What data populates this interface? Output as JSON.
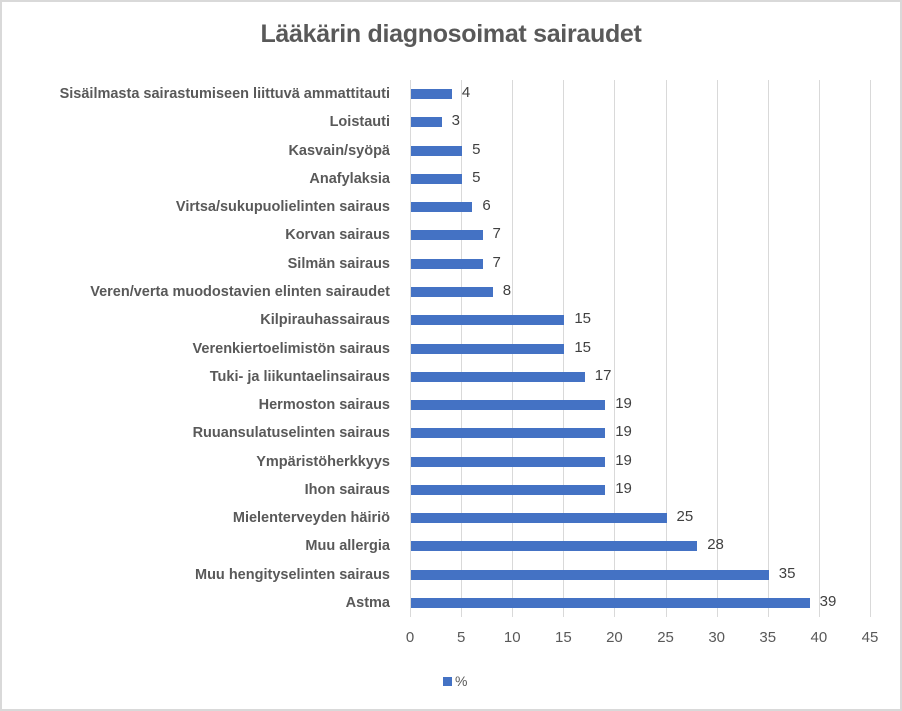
{
  "chart_data": {
    "type": "bar",
    "orientation": "horizontal",
    "title": "Lääkärin diagnosoimat sairaudet",
    "xlabel": "",
    "ylabel": "",
    "xlim": [
      0,
      45
    ],
    "x_ticks": [
      "0",
      "5",
      "10",
      "15",
      "20",
      "25",
      "30",
      "35",
      "40",
      "45"
    ],
    "grid": "vertical",
    "legend_position": "bottom",
    "categories": [
      "Sisäilmasta sairastumiseen liittuvä ammattitauti",
      "Loistauti",
      "Kasvain/syöpä",
      "Anafylaksia",
      "Virtsa/sukupuolielinten sairaus",
      "Korvan sairaus",
      "Silmän sairaus",
      "Veren/verta muodostavien elinten sairaudet",
      "Kilpirauhassairaus",
      "Verenkiertoelimistön sairaus",
      "Tuki- ja liikuntaelinsairaus",
      "Hermoston sairaus",
      "Ruuansulatuselinten sairaus",
      "Ympäristöherkkyys",
      "Ihon sairaus",
      "Mielenterveyden häiriö",
      "Muu allergia",
      "Muu hengityselinten sairaus",
      "Astma"
    ],
    "series": [
      {
        "name": "%",
        "color": "#4472c4",
        "values": [
          4,
          3,
          5,
          5,
          6,
          7,
          7,
          8,
          15,
          15,
          17,
          19,
          19,
          19,
          19,
          25,
          28,
          35,
          39
        ]
      }
    ]
  },
  "title": "Lääkärin diagnosoimat sairaudet",
  "rows": [
    {
      "label": "Sisäilmasta sairastumiseen liittuvä ammattitauti",
      "value": "4"
    },
    {
      "label": "Loistauti",
      "value": "3"
    },
    {
      "label": "Kasvain/syöpä",
      "value": "5"
    },
    {
      "label": "Anafylaksia",
      "value": "5"
    },
    {
      "label": "Virtsa/sukupuolielinten sairaus",
      "value": "6"
    },
    {
      "label": "Korvan sairaus",
      "value": "7"
    },
    {
      "label": "Silmän sairaus",
      "value": "7"
    },
    {
      "label": "Veren/verta muodostavien elinten sairaudet",
      "value": "8"
    },
    {
      "label": "Kilpirauhassairaus",
      "value": "15"
    },
    {
      "label": "Verenkiertoelimistön sairaus",
      "value": "15"
    },
    {
      "label": "Tuki- ja liikuntaelinsairaus",
      "value": "17"
    },
    {
      "label": "Hermoston sairaus",
      "value": "19"
    },
    {
      "label": "Ruuansulatuselinten sairaus",
      "value": "19"
    },
    {
      "label": "Ympäristöherkkyys",
      "value": "19"
    },
    {
      "label": "Ihon sairaus",
      "value": "19"
    },
    {
      "label": "Mielenterveyden häiriö",
      "value": "25"
    },
    {
      "label": "Muu allergia",
      "value": "28"
    },
    {
      "label": "Muu hengityselinten sairaus",
      "value": "35"
    },
    {
      "label": "Astma",
      "value": "39"
    }
  ],
  "x_axis": {
    "ticks": [
      "0",
      "5",
      "10",
      "15",
      "20",
      "25",
      "30",
      "35",
      "40",
      "45"
    ],
    "max": 45
  },
  "legend": {
    "label": "%",
    "color": "#4472c4"
  }
}
